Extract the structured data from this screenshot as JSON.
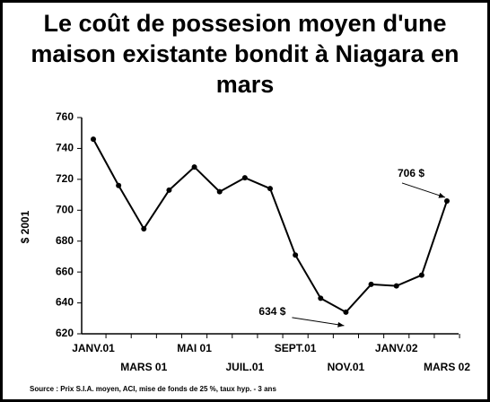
{
  "chart_data": {
    "type": "line",
    "title": "Le coût de possesion moyen d'une maison existante bondit à Niagara en mars",
    "y_label": "$ 2001",
    "source": "Source : Prix S.I.A. moyen, ACI, mise de fonds de 25 %, taux hyp. - 3 ans",
    "categories": [
      "JANV.01",
      null,
      "MARS 01",
      null,
      "MAI 01",
      null,
      "JUIL.01",
      null,
      "SEPT.01",
      null,
      "NOV.01",
      null,
      "JANV.02",
      null,
      "MARS 02"
    ],
    "values": [
      746,
      716,
      688,
      713,
      728,
      712,
      721,
      714,
      671,
      643,
      634,
      652,
      651,
      658,
      706
    ],
    "value_labels": [
      null,
      null,
      null,
      null,
      null,
      null,
      null,
      null,
      null,
      null,
      "634 $",
      null,
      null,
      null,
      "706 $"
    ],
    "color": "#000000",
    "ylim": [
      620,
      760
    ],
    "yticks": [
      620,
      640,
      660,
      680,
      700,
      720,
      740,
      760
    ]
  }
}
